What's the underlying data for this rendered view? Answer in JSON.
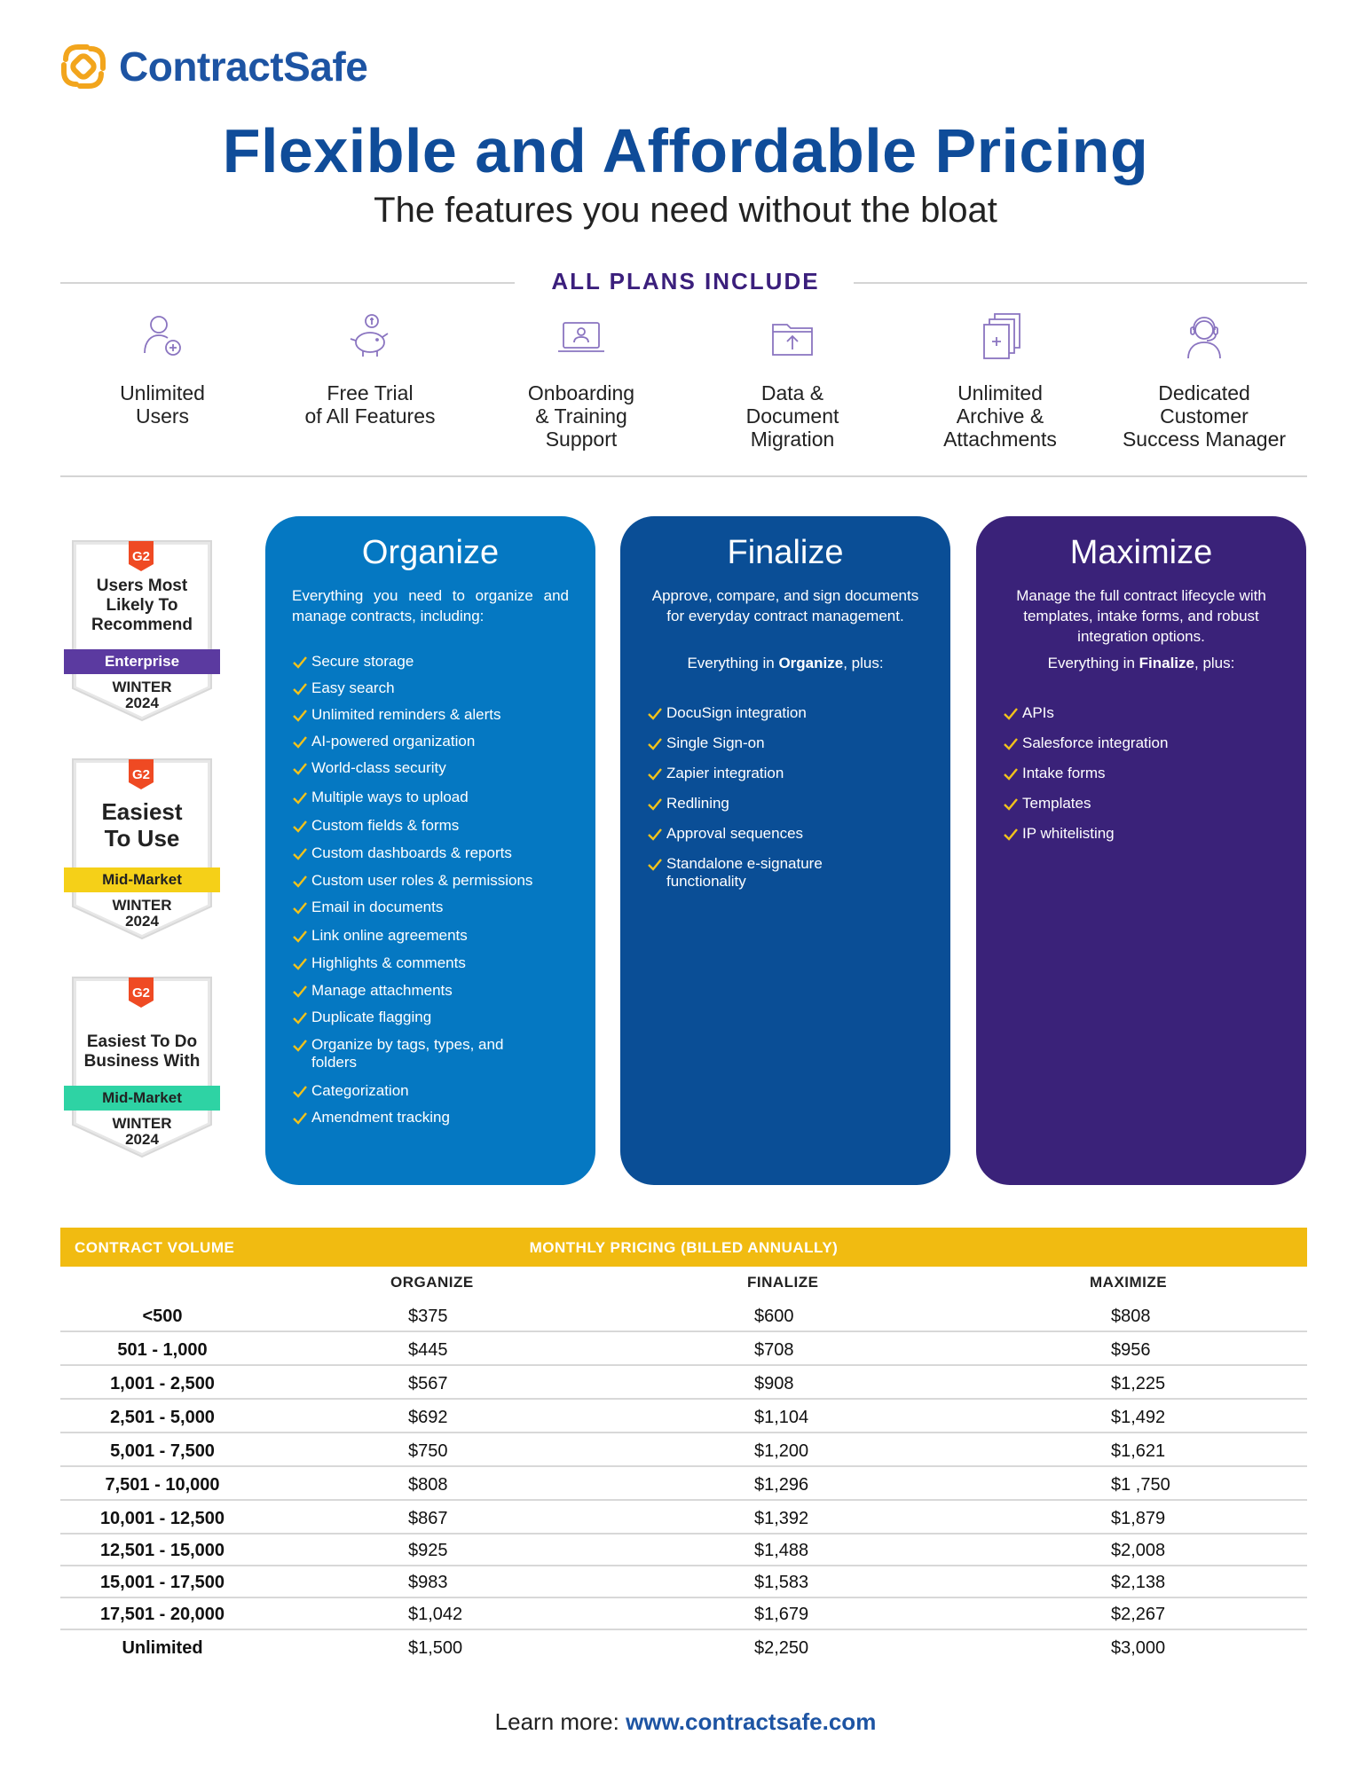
{
  "brand": {
    "name": "ContractSafe"
  },
  "header": {
    "title": "Flexible and Affordable Pricing",
    "subtitle": "The features you need without the bloat"
  },
  "all_plans": {
    "label": "ALL PLANS INCLUDE",
    "features": [
      {
        "icon": "user-add-icon",
        "label": "Unlimited\nUsers"
      },
      {
        "icon": "piggy-bank-icon",
        "label": "Free Trial\nof All Features"
      },
      {
        "icon": "laptop-training-icon",
        "label": "Onboarding\n& Training\nSupport"
      },
      {
        "icon": "folder-upload-icon",
        "label": "Data &\nDocument\nMigration"
      },
      {
        "icon": "stacked-documents-icon",
        "label": "Unlimited\nArchive &\nAttachments"
      },
      {
        "icon": "headset-agent-icon",
        "label": "Dedicated\nCustomer\nSuccess Manager"
      }
    ]
  },
  "badges": [
    {
      "icon": "g2-logo-icon",
      "headline": "Users Most\nLikely To\nRecommend",
      "segment": "Enterprise",
      "segment_color": "#5b3aa0",
      "season": "WINTER\n2024"
    },
    {
      "icon": "g2-logo-icon",
      "headline": "Easiest\nTo Use",
      "segment": "Mid-Market",
      "segment_color": "#f5d018",
      "season": "WINTER\n2024"
    },
    {
      "icon": "g2-logo-icon",
      "headline": "Easiest To Do\nBusiness With",
      "segment": "Mid-Market",
      "segment_color": "#2ed3a4",
      "season": "WINTER\n2024"
    }
  ],
  "plans": [
    {
      "name": "Organize",
      "color": "#0578c2",
      "description": "Everything you need to organize and manage contracts, including:",
      "features": [
        "Secure storage",
        "Easy search",
        "Unlimited reminders & alerts",
        "AI-powered organization",
        "World-class security",
        "Multiple ways to upload",
        "Custom fields & forms",
        "Custom dashboards & reports",
        "Custom user roles & permissions",
        "Email in documents",
        "Link online agreements",
        "Highlights & comments",
        "Manage attachments",
        "Duplicate flagging",
        "Organize by tags, types, and folders",
        "Categorization",
        "Amendment tracking"
      ]
    },
    {
      "name": "Finalize",
      "color": "#0a4e96",
      "description": "Approve, compare, and sign documents for everyday contract management.",
      "plus_prefix": "Everything in ",
      "plus_plan": "Organize",
      "plus_suffix": ", plus:",
      "features": [
        "DocuSign integration",
        "Single Sign-on",
        "Zapier integration",
        "Redlining",
        "Approval sequences",
        "Standalone e-signature functionality"
      ]
    },
    {
      "name": "Maximize",
      "color": "#3a2279",
      "description": "Manage the full contract lifecycle with templates, intake forms, and robust integration options.",
      "plus_prefix": "Everything in ",
      "plus_plan": "Finalize",
      "plus_suffix": ", plus:",
      "features": [
        "APIs",
        "Salesforce integration",
        "Intake forms",
        "Templates",
        "IP whitelisting"
      ]
    }
  ],
  "pricing": {
    "volume_header": "CONTRACT VOLUME",
    "pricing_header": "MONTHLY PRICING (BILLED ANNUALLY)",
    "columns": [
      "ORGANIZE",
      "FINALIZE",
      "MAXIMIZE"
    ],
    "rows": [
      {
        "volume": "<500",
        "prices": [
          "$375",
          "$600",
          "$808"
        ]
      },
      {
        "volume": "501 - 1,000",
        "prices": [
          "$445",
          "$708",
          "$956"
        ]
      },
      {
        "volume": "1,001 - 2,500",
        "prices": [
          "$567",
          "$908",
          "$1,225"
        ]
      },
      {
        "volume": "2,501 - 5,000",
        "prices": [
          "$692",
          "$1,104",
          "$1,492"
        ]
      },
      {
        "volume": "5,001 - 7,500",
        "prices": [
          "$750",
          "$1,200",
          "$1,621"
        ]
      },
      {
        "volume": "7,501 - 10,000",
        "prices": [
          "$808",
          "$1,296",
          "$1 ,750"
        ]
      },
      {
        "volume": "10,001 - 12,500",
        "prices": [
          "$867",
          "$1,392",
          "$1,879"
        ]
      },
      {
        "volume": "12,501 - 15,000",
        "prices": [
          "$925",
          "$1,488",
          "$2,008"
        ]
      },
      {
        "volume": "15,001 - 17,500",
        "prices": [
          "$983",
          "$1,583",
          "$2,138"
        ]
      },
      {
        "volume": "17,501 - 20,000",
        "prices": [
          "$1,042",
          "$1,679",
          "$2,267"
        ]
      },
      {
        "volume": "Unlimited",
        "prices": [
          "$1,500",
          "$2,250",
          "$3,000"
        ]
      }
    ]
  },
  "footer": {
    "prefix": "Learn more: ",
    "url": "www.contractsafe.com"
  }
}
